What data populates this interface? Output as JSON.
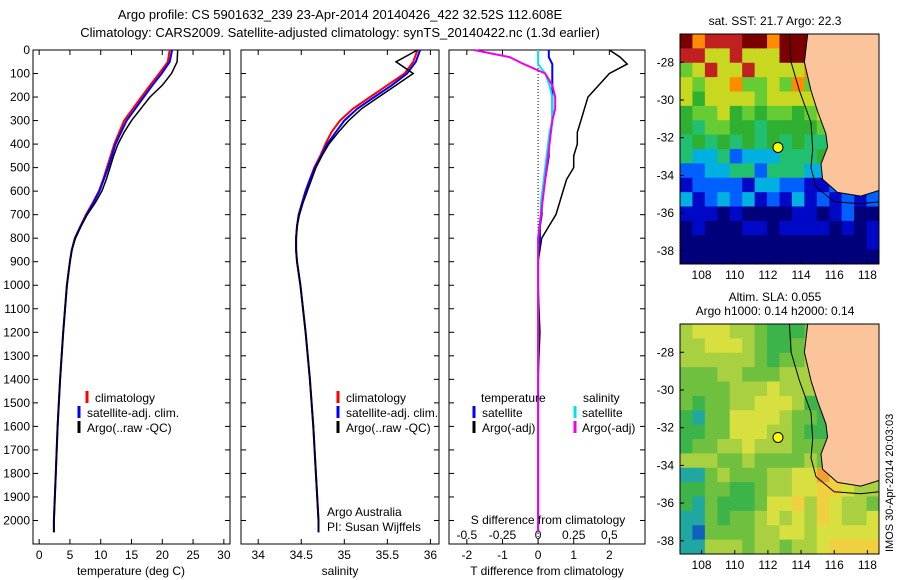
{
  "header": {
    "line1": "Argo profile: CS 5901632_239 23-Apr-2014 20140426_422 32.52S 112.608E",
    "line2": "Climatology: CARS2009. Satellite-adjusted climatology: synTS_20140422.nc (1.3d earlier)"
  },
  "map_sst": {
    "title": "sat. SST: 21.7 Argo: 22.3"
  },
  "map_sla": {
    "title1": "Altim. SLA: 0.055",
    "title2": "Argo h1000: 0.14 h2000: 0.14"
  },
  "credit": {
    "pi_line1": "Argo Australia",
    "pi_line2": "PI: Susan Wijffels",
    "imos": "IMOS 30-Apr-2014 20:03:03"
  },
  "colors": {
    "climatology": "#ff0000",
    "satellite": "#0000ff",
    "argo": "#000000",
    "s_satellite": "#00e5e5",
    "s_argo": "#ee00ee",
    "land": "#fcc49a"
  },
  "chart_data": [
    {
      "type": "line",
      "name": "temperature",
      "xlabel": "temperature (deg C)",
      "ylabel": "",
      "xlim": [
        -1,
        31
      ],
      "ylim": [
        2100,
        0
      ],
      "xticks": [
        "0",
        "5",
        "10",
        "15",
        "20",
        "25",
        "30"
      ],
      "yticks": [
        "0",
        "100",
        "200",
        "300",
        "400",
        "500",
        "600",
        "700",
        "800",
        "900",
        "1000",
        "1100",
        "1200",
        "1300",
        "1400",
        "1500",
        "1600",
        "1700",
        "1800",
        "1900",
        "2000"
      ],
      "legend": [
        "climatology",
        "satellite-adj. clim.",
        "Argo(..raw -QC)"
      ],
      "depth": [
        0,
        50,
        100,
        150,
        200,
        250,
        300,
        350,
        400,
        450,
        500,
        550,
        600,
        650,
        700,
        750,
        800,
        850,
        900,
        1000,
        1200,
        1400,
        1600,
        1800,
        2000,
        2050
      ],
      "series": [
        {
          "name": "climatology",
          "values": [
            21.2,
            20.9,
            19.5,
            18.0,
            16.6,
            15.2,
            13.8,
            13.0,
            12.2,
            11.6,
            11.0,
            10.4,
            9.7,
            8.7,
            7.6,
            6.7,
            5.8,
            5.3,
            5.0,
            4.5,
            3.9,
            3.4,
            3.0,
            2.7,
            2.4,
            2.4
          ]
        },
        {
          "name": "satellite-adj. clim.",
          "values": [
            21.6,
            21.2,
            19.9,
            18.4,
            17.0,
            15.6,
            14.2,
            13.3,
            12.4,
            11.8,
            11.2,
            10.5,
            9.8,
            8.8,
            7.7,
            6.7,
            5.8,
            5.3,
            5.0,
            4.5,
            3.9,
            3.4,
            3.0,
            2.7,
            2.4,
            2.4
          ]
        },
        {
          "name": "Argo(..raw -QC)",
          "values": [
            22.5,
            22.4,
            21.5,
            20.0,
            18.0,
            16.5,
            15.0,
            13.8,
            12.8,
            12.1,
            11.5,
            10.9,
            10.2,
            9.1,
            7.8,
            6.8,
            5.9,
            5.3,
            5.0,
            4.5,
            3.9,
            3.4,
            3.0,
            2.7,
            2.4,
            2.4
          ]
        }
      ]
    },
    {
      "type": "line",
      "name": "salinity",
      "xlabel": "salinity",
      "ylabel": "",
      "xlim": [
        33.8,
        36.1
      ],
      "ylim": [
        2100,
        0
      ],
      "xticks": [
        "34",
        "34.5",
        "35",
        "35.5",
        "36"
      ],
      "legend": [
        "climatology",
        "satellite-adj. clim.",
        "Argo(..raw -QC)"
      ],
      "depth": [
        0,
        50,
        100,
        150,
        200,
        250,
        300,
        350,
        400,
        450,
        500,
        550,
        600,
        650,
        700,
        750,
        800,
        850,
        900,
        1000,
        1200,
        1400,
        1600,
        1800,
        2000,
        2050
      ],
      "series": [
        {
          "name": "climatology",
          "values": [
            35.85,
            35.8,
            35.7,
            35.5,
            35.3,
            35.1,
            34.95,
            34.85,
            34.78,
            34.72,
            34.65,
            34.6,
            34.55,
            34.51,
            34.47,
            34.45,
            34.44,
            34.44,
            34.45,
            34.49,
            34.55,
            34.6,
            34.64,
            34.67,
            34.7,
            34.7
          ]
        },
        {
          "name": "satellite-adj. clim.",
          "values": [
            35.88,
            35.83,
            35.73,
            35.55,
            35.35,
            35.15,
            35.0,
            34.9,
            34.8,
            34.73,
            34.66,
            34.6,
            34.55,
            34.51,
            34.47,
            34.45,
            34.44,
            34.44,
            34.45,
            34.49,
            34.55,
            34.6,
            34.64,
            34.67,
            34.7,
            34.7
          ]
        },
        {
          "name": "Argo(..raw -QC)",
          "values": [
            35.85,
            35.6,
            35.8,
            35.6,
            35.4,
            35.2,
            35.05,
            34.93,
            34.82,
            34.74,
            34.67,
            34.62,
            34.57,
            34.52,
            34.48,
            34.45,
            34.44,
            34.44,
            34.45,
            34.49,
            34.55,
            34.6,
            34.64,
            34.67,
            34.7,
            34.7
          ]
        }
      ]
    },
    {
      "type": "line",
      "name": "difference",
      "xlabel": "T difference from climatology",
      "xlabel_top": "S difference from climatology",
      "ylabel": "",
      "xlim": [
        -2.5,
        3
      ],
      "ylim": [
        2100,
        0
      ],
      "xticks": [
        "-2",
        "-1",
        "0",
        "1",
        "2"
      ],
      "xticks_top": [
        "-0.5",
        "-0.25",
        "0",
        "0.25",
        "0.5"
      ],
      "legend_temperature": {
        "title": "temperature",
        "items": [
          "satellite",
          "Argo(-adj)"
        ]
      },
      "legend_salinity": {
        "title": "salinity",
        "items": [
          "satellite",
          "Argo(-adj)"
        ]
      },
      "depth": [
        0,
        30,
        60,
        100,
        150,
        200,
        250,
        300,
        350,
        400,
        450,
        500,
        550,
        600,
        650,
        700,
        750,
        800,
        850,
        900,
        1000,
        1200,
        1400,
        1600,
        1800,
        2000,
        2050
      ],
      "series": [
        {
          "name": "T satellite",
          "values": [
            0.3,
            0.3,
            0.4,
            0.4,
            0.4,
            0.4,
            0.4,
            0.4,
            0.35,
            0.3,
            0.3,
            0.25,
            0.2,
            0.15,
            0.1,
            0.1,
            0.05,
            0.05,
            0.0,
            0.0,
            0.0,
            0.0,
            0.0,
            0.0,
            0.0,
            0.0,
            0.0
          ]
        },
        {
          "name": "T Argo(-adj)",
          "values": [
            2.0,
            2.3,
            2.5,
            2.0,
            1.7,
            1.4,
            1.3,
            1.2,
            1.1,
            1.1,
            1.0,
            1.0,
            0.8,
            0.7,
            0.6,
            0.5,
            0.3,
            0.1,
            0.05,
            0.0,
            0.0,
            0.05,
            0.0,
            0.0,
            0.0,
            0.0,
            0.0
          ]
        },
        {
          "name": "S satellite",
          "values": [
            0.0,
            0.0,
            0.0,
            0.05,
            0.08,
            0.1,
            0.1,
            0.1,
            0.08,
            0.07,
            0.06,
            0.05,
            0.04,
            0.03,
            0.02,
            0.02,
            0.01,
            0.0,
            0.0,
            0.0,
            0.0,
            0.0,
            0.0,
            0.0,
            0.0,
            0.0,
            0.0
          ]
        },
        {
          "name": "S Argo(-adj)",
          "values": [
            -0.45,
            -0.2,
            -0.1,
            0.05,
            0.1,
            0.12,
            0.12,
            0.1,
            0.09,
            0.08,
            0.07,
            0.06,
            0.05,
            0.04,
            0.03,
            0.02,
            0.01,
            0.0,
            0.0,
            0.0,
            0.0,
            0.0,
            0.0,
            0.0,
            0.0,
            0.0,
            0.0
          ]
        }
      ]
    },
    {
      "type": "heatmap",
      "name": "sst map",
      "xticks": [
        "108",
        "110",
        "112",
        "114",
        "116",
        "118"
      ],
      "yticks": [
        "-28",
        "-30",
        "-32",
        "-34",
        "-36",
        "-38"
      ],
      "xlim": [
        106.7,
        118.7
      ],
      "ylim": [
        -38.7,
        -26.5
      ],
      "argo_position": [
        112.608,
        -32.52
      ]
    },
    {
      "type": "heatmap",
      "name": "sla map",
      "xticks": [
        "108",
        "110",
        "112",
        "114",
        "116",
        "118"
      ],
      "yticks": [
        "-28",
        "-30",
        "-32",
        "-34",
        "-36",
        "-38"
      ],
      "xlim": [
        106.7,
        118.7
      ],
      "ylim": [
        -38.7,
        -26.5
      ],
      "argo_position": [
        112.608,
        -32.52
      ]
    }
  ]
}
